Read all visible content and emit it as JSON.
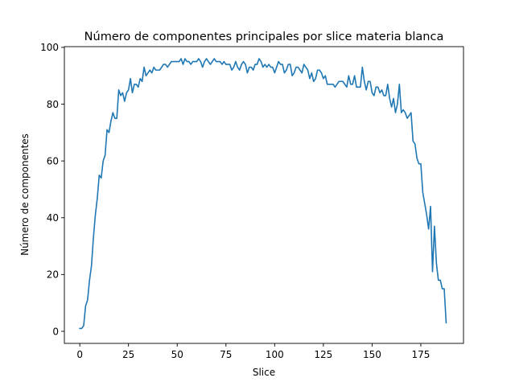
{
  "chart_data": {
    "type": "line",
    "title": "Número de componentes principales por slice materia blanca",
    "xlabel": "Slice",
    "ylabel": "Número de componentes",
    "xlim": [
      -7.9,
      196.9
    ],
    "ylim": [
      -4.25,
      100.25
    ],
    "xticks": [
      0,
      25,
      50,
      75,
      100,
      125,
      150,
      175
    ],
    "yticks": [
      0,
      20,
      40,
      60,
      80,
      100
    ],
    "xtick_labels": [
      "0",
      "25",
      "50",
      "75",
      "100",
      "125",
      "150",
      "175"
    ],
    "ytick_labels": [
      "0",
      "20",
      "40",
      "60",
      "80",
      "100"
    ],
    "grid": false,
    "legend": "none",
    "series": [
      {
        "color": "#1f77b4",
        "x": [
          0,
          1,
          2,
          3,
          4,
          5,
          6,
          7,
          8,
          9,
          10,
          11,
          12,
          13,
          14,
          15,
          16,
          17,
          18,
          19,
          20,
          21,
          22,
          23,
          24,
          25,
          26,
          27,
          28,
          29,
          30,
          31,
          32,
          33,
          34,
          35,
          36,
          37,
          38,
          39,
          40,
          41,
          42,
          43,
          44,
          45,
          46,
          47,
          48,
          49,
          50,
          51,
          52,
          53,
          54,
          55,
          56,
          57,
          58,
          59,
          60,
          61,
          62,
          63,
          64,
          65,
          66,
          67,
          68,
          69,
          70,
          71,
          72,
          73,
          74,
          75,
          76,
          77,
          78,
          79,
          80,
          81,
          82,
          83,
          84,
          85,
          86,
          87,
          88,
          89,
          90,
          91,
          92,
          93,
          94,
          95,
          96,
          97,
          98,
          99,
          100,
          101,
          102,
          103,
          104,
          105,
          106,
          107,
          108,
          109,
          110,
          111,
          112,
          113,
          114,
          115,
          116,
          117,
          118,
          119,
          120,
          121,
          122,
          123,
          124,
          125,
          126,
          127,
          128,
          129,
          130,
          131,
          132,
          133,
          134,
          135,
          136,
          137,
          138,
          139,
          140,
          141,
          142,
          143,
          144,
          145,
          146,
          147,
          148,
          149,
          150,
          151,
          152,
          153,
          154,
          155,
          156,
          157,
          158,
          159,
          160,
          161,
          162,
          163,
          164,
          165,
          166,
          167,
          168,
          169,
          170,
          171,
          172,
          173,
          174,
          175,
          176,
          177,
          178,
          179,
          180,
          181,
          182,
          183,
          184,
          185,
          186,
          187,
          188
        ],
        "y": [
          1,
          1,
          2,
          9,
          11,
          18,
          23,
          33,
          41,
          47,
          55,
          54,
          60,
          62,
          71,
          70,
          74,
          77,
          75,
          75,
          85,
          83,
          84,
          81,
          84,
          85,
          89,
          84,
          87,
          87,
          86,
          89,
          88,
          93,
          90,
          91,
          92,
          91,
          93,
          92,
          92,
          92,
          93,
          94,
          94,
          93,
          94,
          95,
          95,
          95,
          95,
          95,
          96,
          94,
          96,
          95,
          95,
          94,
          95,
          95,
          95,
          96,
          95,
          93,
          95,
          96,
          95,
          94,
          95,
          96,
          95,
          95,
          95,
          94,
          95,
          94,
          94,
          94,
          92,
          93,
          95,
          93,
          92,
          94,
          95,
          94,
          91,
          93,
          93,
          92,
          94,
          94,
          96,
          95,
          93,
          94,
          93,
          94,
          93,
          93,
          91,
          93,
          95,
          94,
          94,
          91,
          92,
          94,
          94,
          90,
          91,
          93,
          93,
          92,
          91,
          94,
          93,
          92,
          89,
          91,
          88,
          89,
          92,
          92,
          91,
          89,
          90,
          87,
          87,
          87,
          87,
          86,
          87,
          88,
          88,
          88,
          87,
          86,
          90,
          87,
          87,
          90,
          86,
          86,
          86,
          93,
          88,
          85,
          88,
          88,
          84,
          83,
          86,
          86,
          84,
          85,
          83,
          83,
          87,
          82,
          79,
          82,
          77,
          80,
          87,
          77,
          78,
          77,
          75,
          76,
          77,
          67,
          66,
          61,
          59,
          59,
          49,
          45,
          41,
          36,
          44,
          21,
          37,
          24,
          18,
          18,
          15,
          15,
          3
        ]
      }
    ]
  }
}
